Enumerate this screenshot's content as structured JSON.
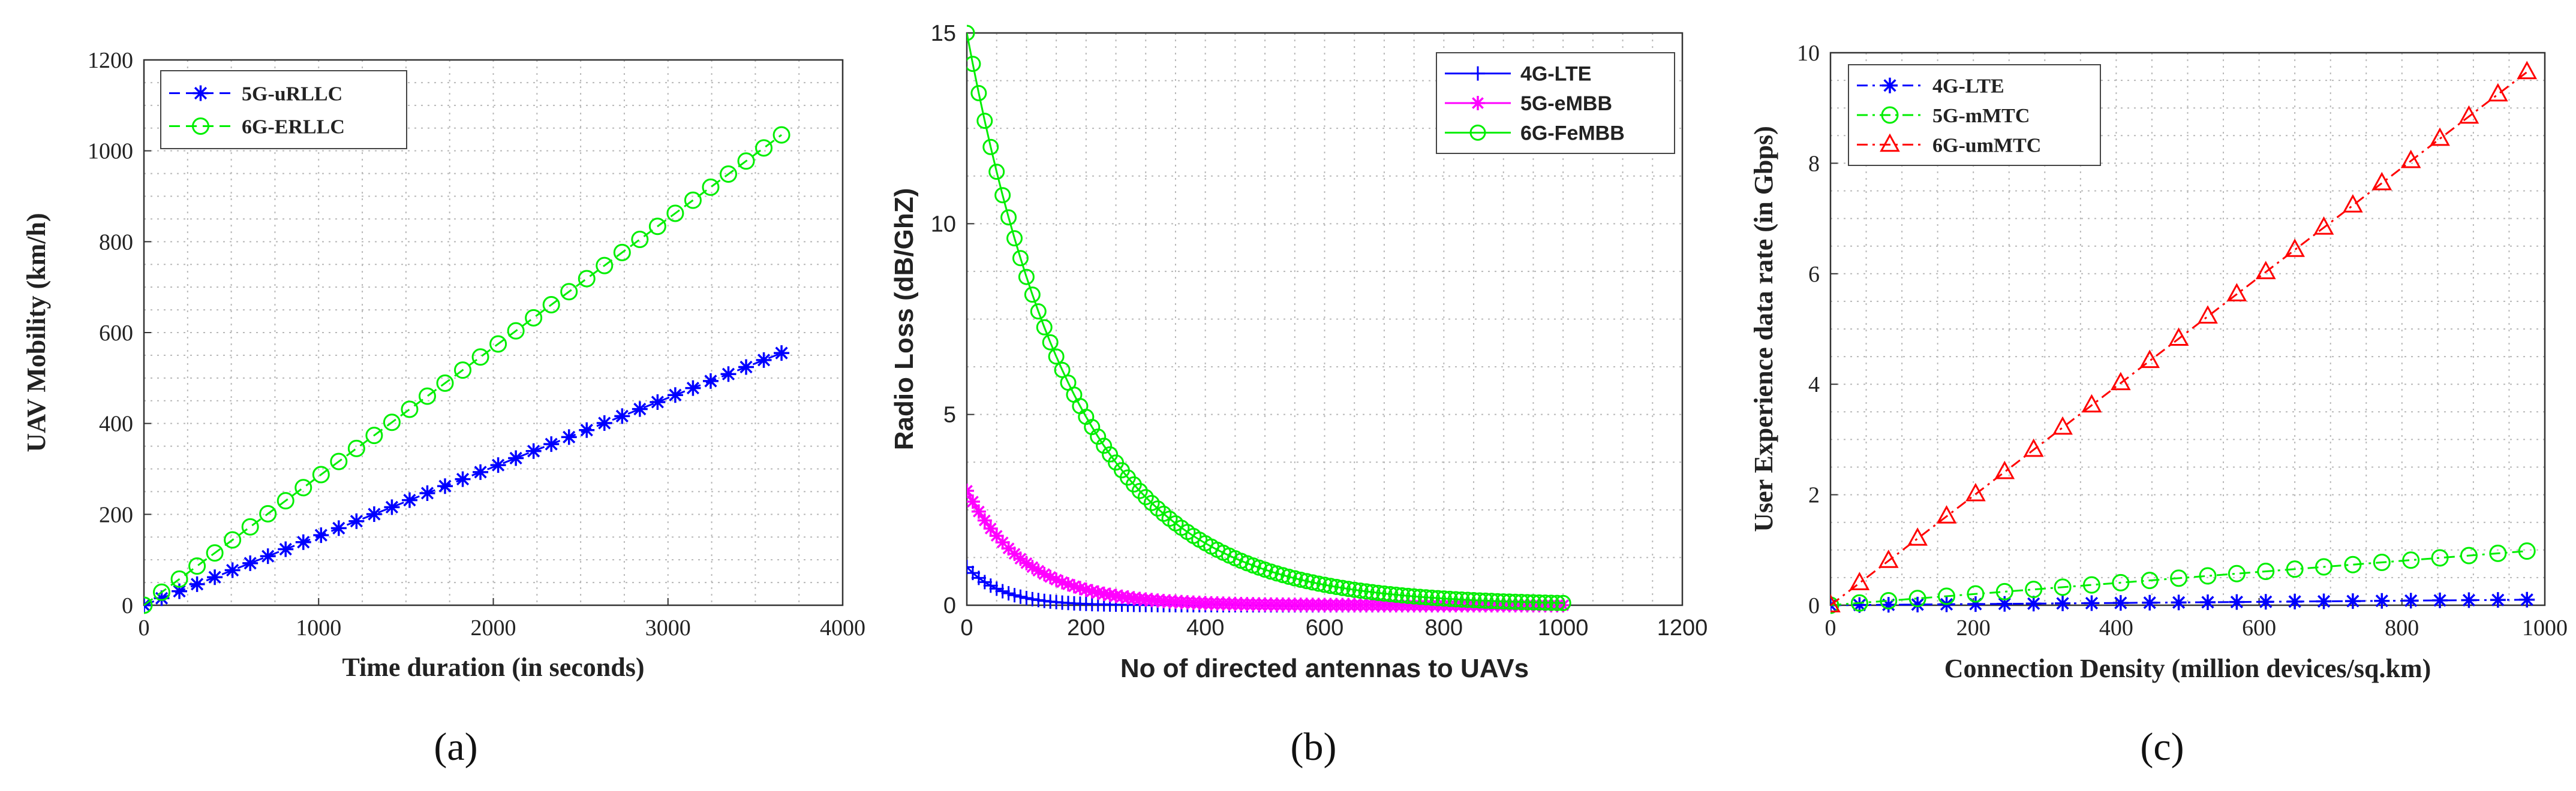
{
  "chart_data": [
    {
      "id": "a",
      "type": "line",
      "caption": "(a)",
      "xlabel": "Time duration (in seconds)",
      "ylabel": "UAV Mobility (km/h)",
      "xlim": [
        0,
        4000
      ],
      "ylim": [
        0,
        1200
      ],
      "xticks": [
        0,
        1000,
        2000,
        3000,
        4000
      ],
      "yticks": [
        0,
        200,
        400,
        600,
        800,
        1000,
        1200
      ],
      "legend_position": "top-left",
      "series": [
        {
          "name": "5G-uRLLC",
          "color": "#0000ff",
          "marker": "star",
          "linestyle": "dashed",
          "x_start": 0,
          "x_end": 3650,
          "count": 37,
          "y_start": 0,
          "y_end": 555
        },
        {
          "name": "6G-ERLLC",
          "color": "#00ee00",
          "marker": "circle",
          "linestyle": "dashed",
          "x_start": 0,
          "x_end": 3650,
          "count": 37,
          "y_start": 0,
          "y_end": 1035
        }
      ]
    },
    {
      "id": "b",
      "type": "line",
      "caption": "(b)",
      "xlabel": "No of directed antennas to UAVs",
      "ylabel": "Radio Loss (dB/GhZ)",
      "xlim": [
        0,
        1200
      ],
      "ylim": [
        0,
        15
      ],
      "xticks": [
        0,
        200,
        400,
        600,
        800,
        1000,
        1200
      ],
      "yticks": [
        0,
        5,
        10,
        15
      ],
      "legend_position": "top-right",
      "series": [
        {
          "name": "4G-LTE",
          "color": "#0000ff",
          "marker": "plus",
          "linestyle": "solid",
          "x_start": 0,
          "x_end": 1000,
          "count": 101,
          "y0": 1.0,
          "decay": 60
        },
        {
          "name": "5G-eMBB",
          "color": "#ff00ff",
          "marker": "star",
          "linestyle": "solid",
          "x_start": 0,
          "x_end": 1000,
          "count": 101,
          "y0": 3.0,
          "decay": 100
        },
        {
          "name": "6G-FeMBB",
          "color": "#00ee00",
          "marker": "circle",
          "linestyle": "solid",
          "x_start": 0,
          "x_end": 1000,
          "count": 101,
          "y0": 15.0,
          "decay": 180
        }
      ]
    },
    {
      "id": "c",
      "type": "line",
      "caption": "(c)",
      "xlabel": "Connection Density (million devices/sq.km)",
      "ylabel": "User Experience data rate (in Gbps)",
      "xlim": [
        0,
        1000
      ],
      "ylim": [
        0,
        10
      ],
      "xticks": [
        0,
        200,
        400,
        600,
        800,
        1000
      ],
      "yticks": [
        0,
        2,
        4,
        6,
        8,
        10
      ],
      "legend_position": "top-left",
      "series": [
        {
          "name": "4G-LTE",
          "color": "#0000ff",
          "marker": "star",
          "linestyle": "dashdot",
          "x_start": 0,
          "x_end": 975,
          "count": 25,
          "y_start": 0,
          "y_end": 0.1
        },
        {
          "name": "5G-mMTC",
          "color": "#00ee00",
          "marker": "circle",
          "linestyle": "dashdot",
          "x_start": 0,
          "x_end": 975,
          "count": 25,
          "y_start": 0,
          "y_end": 0.98
        },
        {
          "name": "6G-umMTC",
          "color": "#ff0000",
          "marker": "triangle",
          "linestyle": "dashdot",
          "x_start": 0,
          "x_end": 975,
          "count": 25,
          "y_start": 0,
          "y_end": 9.65
        }
      ]
    }
  ]
}
